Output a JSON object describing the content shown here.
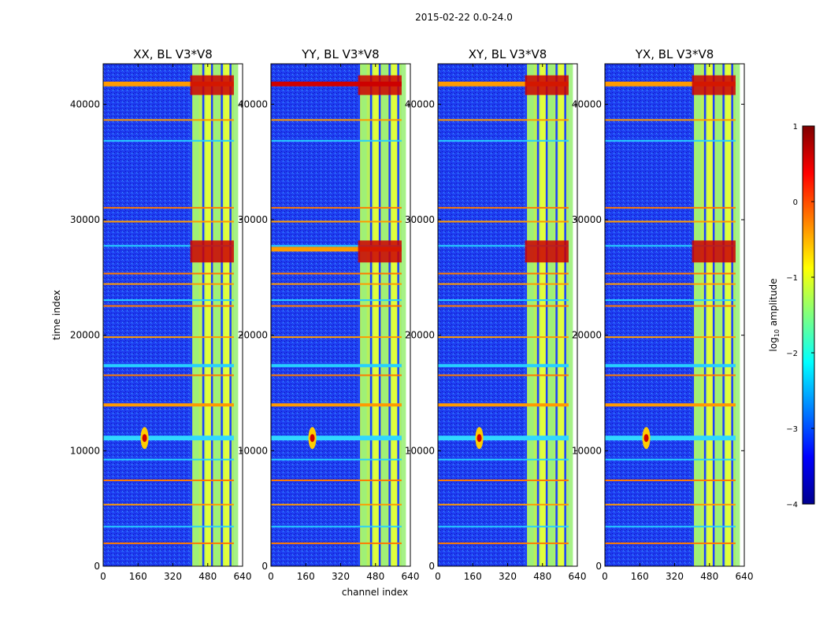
{
  "figure": {
    "suptitle": "2015-02-22 0.0-24.0",
    "xlabel": "channel index",
    "ylabel": "time index"
  },
  "chart_data": {
    "type": "heatmap",
    "panels": [
      {
        "title": "XX, BL V3*V8",
        "polarization": "XX"
      },
      {
        "title": "YY, BL V3*V8",
        "polarization": "YY"
      },
      {
        "title": "XY, BL V3*V8",
        "polarization": "XY"
      },
      {
        "title": "YX, BL V3*V8",
        "polarization": "YX"
      }
    ],
    "xlim": [
      0,
      640
    ],
    "ylim": [
      0,
      43500
    ],
    "xticks": [
      0,
      160,
      320,
      480,
      640
    ],
    "xtick_labels": [
      "0",
      "160",
      "320",
      "480",
      "640"
    ],
    "yticks": [
      0,
      10000,
      20000,
      30000,
      40000
    ],
    "ytick_labels": [
      "0",
      "10000",
      "20000",
      "30000",
      "40000"
    ],
    "data_channel_max": 600,
    "colorbar": {
      "label": "log10 amplitude",
      "label_base": "log",
      "label_sub": "10",
      "label_rest": " amplitude",
      "vmin": -4,
      "vmax": 1,
      "ticks": [
        1,
        0,
        -1,
        -2,
        -3,
        -4
      ],
      "tick_labels": [
        "1",
        "0",
        "−1",
        "−2",
        "−3",
        "−4"
      ],
      "colormap": "jet"
    },
    "features": {
      "rfi_channel_band": [
        400,
        600
      ],
      "strong_rfi_time_bands": [
        [
          40800,
          42500
        ],
        [
          26300,
          28200
        ]
      ],
      "source_crossing_time": 11100,
      "source_crossing_channel": 190,
      "flag_lines_time": [
        1950,
        3400,
        5300,
        7400,
        9200,
        14000,
        16500,
        17400,
        19800,
        22500,
        23000,
        24400,
        25300,
        27700,
        29800,
        31000,
        36800,
        38600
      ]
    }
  }
}
